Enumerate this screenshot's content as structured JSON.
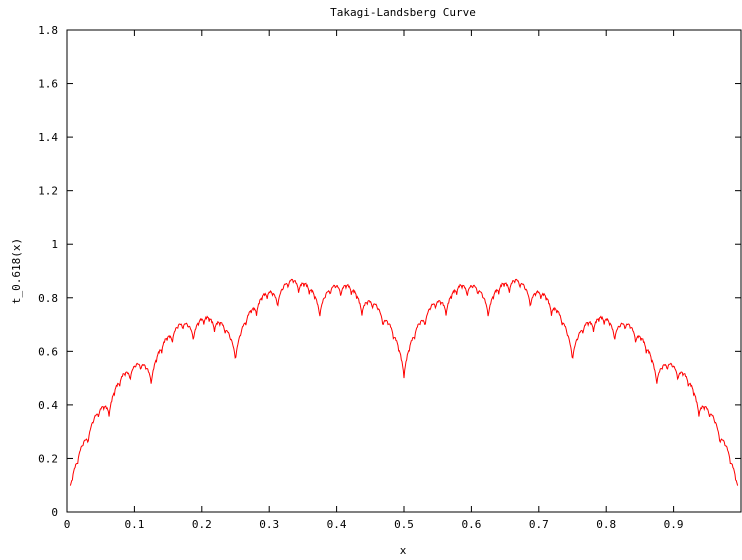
{
  "chart_data": {
    "type": "line",
    "title": "Takagi-Landsberg Curve",
    "xlabel": "x",
    "ylabel": "t_0.618(x)",
    "xlim": [
      0,
      1
    ],
    "ylim": [
      0,
      1.8
    ],
    "x_ticks": [
      0,
      0.1,
      0.2,
      0.3,
      0.4,
      0.5,
      0.6,
      0.7,
      0.8,
      0.9
    ],
    "x_tick_labels": [
      "0",
      "0.1",
      "0.2",
      "0.3",
      "0.4",
      "0.5",
      "0.6",
      "0.7",
      "0.8",
      "0.9"
    ],
    "y_ticks": [
      0,
      0.2,
      0.4,
      0.6,
      0.8,
      1,
      1.2,
      1.4,
      1.6,
      1.8
    ],
    "y_tick_labels": [
      "0",
      "0.2",
      "0.4",
      "0.6",
      "0.8",
      "1",
      "1.2",
      "1.4",
      "1.6",
      "1.8"
    ],
    "grid": false,
    "legend": "none",
    "line_color": "#ff0000",
    "function": {
      "w": 0.618,
      "terms": 12,
      "samples": 1000
    }
  }
}
